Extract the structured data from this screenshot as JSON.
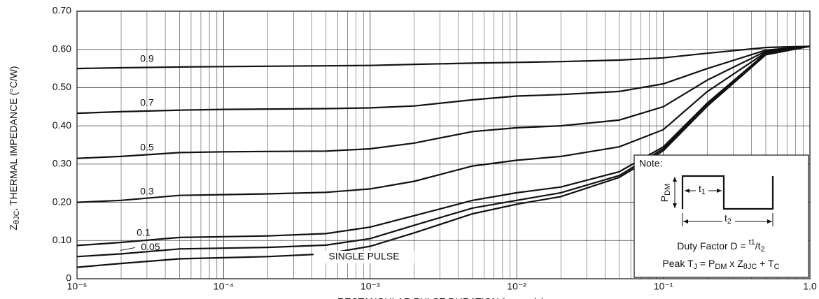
{
  "chart_data": {
    "type": "line",
    "x_label": "RECTANGULAR PULSE DURATION (seconds)",
    "y_label": [
      {
        "text": "Z"
      },
      {
        "text": "θJC",
        "shift": "sub"
      },
      {
        "text": ", THERMAL IMPEDANCE (°C/W)"
      }
    ],
    "x_log": true,
    "grid": true,
    "minor_grid": true,
    "xlim": [
      1e-05,
      1
    ],
    "xticks": [
      {
        "value": 1e-05,
        "label": "10⁻⁵"
      },
      {
        "value": 0.0001,
        "label": "10⁻⁴"
      },
      {
        "value": 0.001,
        "label": "10⁻³"
      },
      {
        "value": 0.01,
        "label": "10⁻²"
      },
      {
        "value": 0.1,
        "label": "10⁻¹"
      },
      {
        "value": 1,
        "label": "1.0"
      }
    ],
    "ylim": [
      0,
      0.7
    ],
    "yticks": [
      0,
      {
        "value": 0.1,
        "label": "0.10"
      },
      {
        "value": 0.2,
        "label": "0.20"
      },
      {
        "value": 0.3,
        "label": "0.30"
      },
      {
        "value": 0.4,
        "label": "0.40"
      },
      {
        "value": 0.5,
        "label": "0.50"
      },
      {
        "value": 0.6,
        "label": "0.60"
      },
      {
        "value": 0.7,
        "label": "0.70"
      }
    ],
    "x": [
      1e-05,
      2e-05,
      5e-05,
      0.0001,
      0.0002,
      0.0005,
      0.001,
      0.002,
      0.005,
      0.01,
      0.02,
      0.05,
      0.1,
      0.2,
      0.5,
      1
    ],
    "series": [
      {
        "name": "0.9",
        "color": "#111111",
        "values": [
          0.55,
          0.552,
          0.554,
          0.555,
          0.556,
          0.557,
          0.558,
          0.561,
          0.564,
          0.566,
          0.568,
          0.572,
          0.578,
          0.59,
          0.605,
          0.608
        ]
      },
      {
        "name": "0.7",
        "color": "#111111",
        "values": [
          0.433,
          0.437,
          0.441,
          0.443,
          0.444,
          0.445,
          0.447,
          0.452,
          0.468,
          0.478,
          0.482,
          0.49,
          0.51,
          0.55,
          0.598,
          0.608
        ]
      },
      {
        "name": "0.5",
        "color": "#111111",
        "values": [
          0.315,
          0.32,
          0.33,
          0.332,
          0.333,
          0.334,
          0.34,
          0.355,
          0.385,
          0.395,
          0.4,
          0.415,
          0.45,
          0.52,
          0.595,
          0.608
        ]
      },
      {
        "name": "0.3",
        "color": "#111111",
        "values": [
          0.2,
          0.205,
          0.218,
          0.22,
          0.222,
          0.226,
          0.235,
          0.255,
          0.295,
          0.31,
          0.32,
          0.345,
          0.39,
          0.49,
          0.592,
          0.608
        ]
      },
      {
        "name": "0.1",
        "color": "#111111",
        "values": [
          0.087,
          0.095,
          0.108,
          0.11,
          0.112,
          0.118,
          0.135,
          0.165,
          0.205,
          0.225,
          0.24,
          0.28,
          0.345,
          0.46,
          0.59,
          0.608
        ]
      },
      {
        "name": "0.05",
        "color": "#111111",
        "values": [
          0.058,
          0.065,
          0.078,
          0.08,
          0.082,
          0.088,
          0.105,
          0.14,
          0.185,
          0.205,
          0.225,
          0.27,
          0.34,
          0.455,
          0.588,
          0.608
        ]
      },
      {
        "name": "SINGLE PULSE",
        "color": "#111111",
        "values": [
          0.03,
          0.04,
          0.052,
          0.055,
          0.058,
          0.065,
          0.085,
          0.12,
          0.17,
          0.195,
          0.215,
          0.265,
          0.335,
          0.452,
          0.586,
          0.608
        ]
      }
    ],
    "note": {
      "title": "Note:",
      "pdm": [
        {
          "text": "P"
        },
        {
          "text": "DM",
          "shift": "sub"
        }
      ],
      "t1": [
        {
          "text": "t"
        },
        {
          "text": "1",
          "shift": "sub"
        }
      ],
      "t2": [
        {
          "text": "t"
        },
        {
          "text": "2",
          "shift": "sub"
        }
      ],
      "duty": [
        {
          "text": "Duty Factor D = "
        },
        {
          "text": "t",
          "shift": "sup"
        },
        {
          "text": "1",
          "shift": "sup"
        },
        {
          "text": "/t"
        },
        {
          "text": "2",
          "shift": "sub"
        }
      ],
      "peak": [
        {
          "text": "Peak T"
        },
        {
          "text": "J",
          "shift": "sub"
        },
        {
          "text": " = P"
        },
        {
          "text": "DM",
          "shift": "sub"
        },
        {
          "text": " x Z"
        },
        {
          "text": "θJC",
          "shift": "sub"
        },
        {
          "text": " + T"
        },
        {
          "text": "C",
          "shift": "sub"
        }
      ]
    }
  }
}
